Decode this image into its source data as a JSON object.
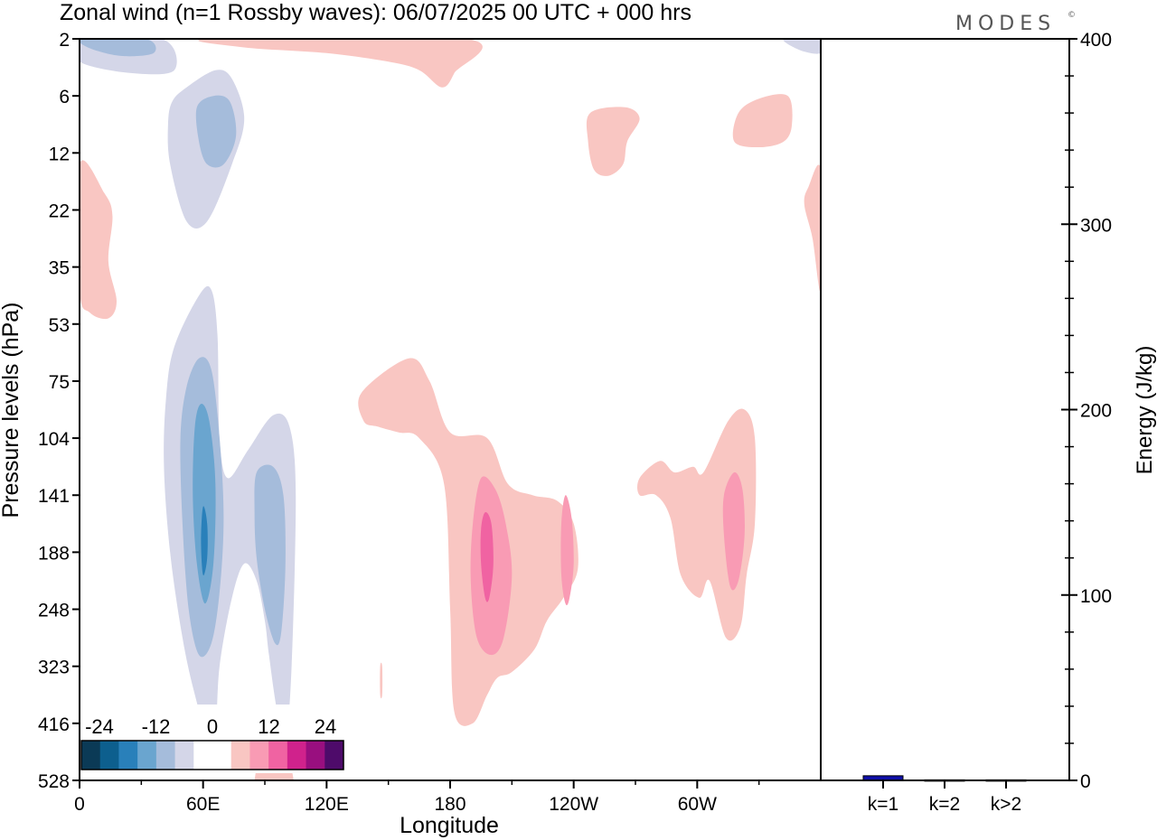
{
  "title": "Zonal wind (n=1 Rossby waves):  06/07/2025  00 UTC  + 000 hrs",
  "logo": {
    "text": "MODES",
    "mark": "©"
  },
  "chart_data": [
    {
      "type": "heatmap",
      "title": "Zonal wind (n=1 Rossby waves):  06/07/2025  00 UTC  + 000 hrs",
      "xlabel": "Longitude",
      "ylabel": "Pressure levels (hPa)",
      "x_ticks": [
        {
          "lon": 0,
          "label": "0"
        },
        {
          "lon": 60,
          "label": "60E"
        },
        {
          "lon": 120,
          "label": "120E"
        },
        {
          "lon": 180,
          "label": "180"
        },
        {
          "lon": 240,
          "label": "120W"
        },
        {
          "lon": 300,
          "label": "60W"
        }
      ],
      "x_minor_lons": [
        30,
        90,
        150,
        210,
        270,
        330
      ],
      "xlim": [
        0,
        360
      ],
      "y_levels_hPa": [
        "2",
        "6",
        "12",
        "22",
        "35",
        "53",
        "75",
        "104",
        "141",
        "188",
        "248",
        "323",
        "416",
        "528"
      ],
      "colorbar": {
        "labels": [
          "-24",
          "-12",
          "0",
          "12",
          "24"
        ],
        "colors": [
          "#0b3a56",
          "#0d5f8e",
          "#2980ba",
          "#6aa5cf",
          "#a5bcdb",
          "#d4d6e8",
          "#ffffff",
          "#ffffff",
          "#f9c6c2",
          "#f99bb4",
          "#f063a2",
          "#d0228c",
          "#990f7f",
          "#4e0b6a"
        ]
      },
      "contours": [
        {
          "name": "neg-top-left",
          "value": -6,
          "color": "#d4d6e8",
          "points": [
            [
              0,
              0
            ],
            [
              40,
              0
            ],
            [
              46,
              0.55
            ],
            [
              25,
              0.6
            ],
            [
              0,
              0.4
            ]
          ]
        },
        {
          "name": "neg-top-left-2",
          "value": -12,
          "color": "#a5bcdb",
          "points": [
            [
              2,
              0
            ],
            [
              32,
              0
            ],
            [
              36,
              0.25
            ],
            [
              20,
              0.3
            ],
            [
              4,
              0.15
            ]
          ]
        },
        {
          "name": "neg-strat-a",
          "value": -6,
          "color": "#d4d6e8",
          "points": [
            [
              52,
              0.85
            ],
            [
              66,
              0.55
            ],
            [
              74,
              0.7
            ],
            [
              80,
              1.4
            ],
            [
              74,
              2.2
            ],
            [
              62,
              3.2
            ],
            [
              52,
              3.2
            ],
            [
              44,
              2.2
            ],
            [
              43,
              1.5
            ],
            [
              45,
              1.1
            ]
          ]
        },
        {
          "name": "neg-strat-b",
          "value": -12,
          "color": "#a5bcdb",
          "points": [
            [
              57,
              1.2
            ],
            [
              65,
              1.0
            ],
            [
              73,
              1.1
            ],
            [
              76,
              1.7
            ],
            [
              70,
              2.2
            ],
            [
              62,
              2.2
            ],
            [
              58,
              1.8
            ]
          ]
        },
        {
          "name": "neg-trop-outer",
          "value": -6,
          "color": "#d4d6e8",
          "points": [
            [
              58,
              4.5
            ],
            [
              64,
              4.4
            ],
            [
              67,
              5.2
            ],
            [
              68,
              7.0
            ],
            [
              72,
              7.7
            ],
            [
              82,
              7.2
            ],
            [
              94,
              6.6
            ],
            [
              102,
              6.8
            ],
            [
              105,
              8.0
            ],
            [
              103,
              11.0
            ],
            [
              100,
              12.3
            ],
            [
              96,
              11.8
            ],
            [
              92,
              10.8
            ],
            [
              90,
              10.2
            ],
            [
              86,
              9.5
            ],
            [
              80,
              9.2
            ],
            [
              74,
              9.8
            ],
            [
              68,
              11.0
            ],
            [
              66,
              12.1
            ],
            [
              62,
              12.2
            ],
            [
              56,
              11.5
            ],
            [
              50,
              10.5
            ],
            [
              44,
              9.0
            ],
            [
              41,
              7.5
            ],
            [
              42,
              6.3
            ],
            [
              46,
              5.4
            ]
          ]
        },
        {
          "name": "neg-trop-mid-a",
          "value": -12,
          "color": "#a5bcdb",
          "points": [
            [
              58,
              5.6
            ],
            [
              64,
              5.8
            ],
            [
              68,
              7.0
            ],
            [
              70,
              8.4
            ],
            [
              68,
              9.7
            ],
            [
              64,
              10.6
            ],
            [
              58,
              10.8
            ],
            [
              53,
              10.0
            ],
            [
              50,
              8.5
            ],
            [
              49,
              7.0
            ],
            [
              52,
              6.1
            ]
          ]
        },
        {
          "name": "neg-trop-mid-b",
          "value": -12,
          "color": "#a5bcdb",
          "points": [
            [
              86,
              7.6
            ],
            [
              94,
              7.5
            ],
            [
              99,
              8.0
            ],
            [
              100,
              9.2
            ],
            [
              98,
              10.4
            ],
            [
              95,
              10.6
            ],
            [
              90,
              10.0
            ],
            [
              86,
              9.1
            ],
            [
              85,
              8.3
            ]
          ]
        },
        {
          "name": "neg-trop-core",
          "value": -18,
          "color": "#6aa5cf",
          "points": [
            [
              59,
              6.4
            ],
            [
              63,
              6.7
            ],
            [
              66,
              7.8
            ],
            [
              65,
              9.2
            ],
            [
              61,
              9.9
            ],
            [
              57,
              9.2
            ],
            [
              55,
              8.0
            ],
            [
              56,
              6.8
            ]
          ]
        },
        {
          "name": "neg-trop-max",
          "value": -24,
          "color": "#2980ba",
          "points": [
            [
              60,
              8.2
            ],
            [
              62,
              8.5
            ],
            [
              62,
              9.1
            ],
            [
              60,
              9.4
            ],
            [
              59,
              8.8
            ]
          ]
        },
        {
          "name": "neg-surf-a",
          "value": -6,
          "color": "#d4d6e8",
          "points": [
            [
              295,
              13.3
            ],
            [
              298,
              13.0
            ],
            [
              300,
              13.5
            ],
            [
              300,
              14
            ],
            [
              294,
              14
            ]
          ]
        },
        {
          "name": "neg-top-right",
          "value": -6,
          "color": "#d4d6e8",
          "points": [
            [
              342,
              0
            ],
            [
              360,
              0
            ],
            [
              360,
              0.25
            ],
            [
              350,
              0.2
            ]
          ]
        },
        {
          "name": "pos-top-mid",
          "value": 6,
          "color": "#f9c6c2",
          "points": [
            [
              64,
              0
            ],
            [
              188,
              0
            ],
            [
              182,
              0.6
            ],
            [
              176,
              0.85
            ],
            [
              165,
              0.55
            ],
            [
              150,
              0.4
            ],
            [
              120,
              0.25
            ],
            [
              80,
              0.15
            ]
          ]
        },
        {
          "name": "pos-top-r1",
          "value": 6,
          "color": "#f9c6c2",
          "points": [
            [
              248,
              1.3
            ],
            [
              265,
              1.2
            ],
            [
              272,
              1.4
            ],
            [
              266,
              1.8
            ],
            [
              264,
              2.2
            ],
            [
              257,
              2.4
            ],
            [
              250,
              2.3
            ],
            [
              247,
              1.8
            ]
          ]
        },
        {
          "name": "pos-top-r2",
          "value": 6,
          "color": "#f9c6c2",
          "points": [
            [
              320,
              1.3
            ],
            [
              330,
              1.05
            ],
            [
              344,
              1.0
            ],
            [
              346,
              1.5
            ],
            [
              342,
              1.8
            ],
            [
              330,
              1.9
            ],
            [
              318,
              1.8
            ]
          ]
        },
        {
          "name": "pos-left-edge",
          "value": 6,
          "color": "#f9c6c2",
          "points": [
            [
              0,
              2.2
            ],
            [
              12,
              2.7
            ],
            [
              16,
              3.1
            ],
            [
              14,
              3.9
            ],
            [
              18,
              4.6
            ],
            [
              14,
              4.9
            ],
            [
              5,
              4.8
            ],
            [
              0,
              4.4
            ]
          ]
        },
        {
          "name": "pos-right-edge",
          "value": 6,
          "color": "#f9c6c2",
          "points": [
            [
              360,
              2.3
            ],
            [
              360,
              4.4
            ],
            [
              356,
              3.5
            ],
            [
              352,
              2.9
            ],
            [
              354,
              2.6
            ]
          ]
        },
        {
          "name": "pos-mid-outer",
          "value": 6,
          "color": "#f9c6c2",
          "points": [
            [
              137,
              6.2
            ],
            [
              160,
              5.6
            ],
            [
              170,
              6.0
            ],
            [
              180,
              6.9
            ],
            [
              198,
              7.0
            ],
            [
              208,
              7.8
            ],
            [
              220,
              8.0
            ],
            [
              232,
              8.1
            ],
            [
              240,
              8.5
            ],
            [
              242,
              9.3
            ],
            [
              235,
              9.8
            ],
            [
              227,
              10.2
            ],
            [
              221,
              10.7
            ],
            [
              210,
              11.1
            ],
            [
              203,
              11.2
            ],
            [
              198,
              11.5
            ],
            [
              191,
              12.0
            ],
            [
              182,
              11.8
            ],
            [
              180,
              10.0
            ],
            [
              177,
              7.8
            ],
            [
              165,
              7.0
            ],
            [
              155,
              6.9
            ],
            [
              145,
              6.8
            ],
            [
              138,
              6.7
            ]
          ]
        },
        {
          "name": "pos-mid-r",
          "value": 6,
          "color": "#f9c6c2",
          "points": [
            [
              272,
              7.7
            ],
            [
              282,
              7.4
            ],
            [
              289,
              7.6
            ],
            [
              298,
              7.5
            ],
            [
              303,
              7.6
            ],
            [
              315,
              6.7
            ],
            [
              323,
              6.5
            ],
            [
              328,
              7.0
            ],
            [
              328,
              8.5
            ],
            [
              324,
              9.4
            ],
            [
              321,
              10.3
            ],
            [
              314,
              10.5
            ],
            [
              306,
              9.5
            ],
            [
              301,
              9.8
            ],
            [
              292,
              9.4
            ],
            [
              287,
              8.4
            ],
            [
              280,
              8.0
            ],
            [
              272,
              8.0
            ]
          ]
        },
        {
          "name": "pos-mid-mid-a",
          "value": 12,
          "color": "#f99bb4",
          "points": [
            [
              195,
              7.7
            ],
            [
              202,
              7.9
            ],
            [
              207,
              8.5
            ],
            [
              210,
              9.4
            ],
            [
              206,
              10.5
            ],
            [
              200,
              10.8
            ],
            [
              193,
              10.5
            ],
            [
              190,
              9.5
            ],
            [
              191,
              8.5
            ]
          ]
        },
        {
          "name": "pos-mid-mid-b",
          "value": 12,
          "color": "#f99bb4",
          "points": [
            [
              236,
              8.0
            ],
            [
              239,
              8.4
            ],
            [
              240,
              9.2
            ],
            [
              238,
              9.8
            ],
            [
              236,
              9.9
            ],
            [
              234,
              9.4
            ],
            [
              234,
              8.5
            ]
          ]
        },
        {
          "name": "pos-mid-mid-c",
          "value": 12,
          "color": "#f99bb4",
          "points": [
            [
              318,
              7.6
            ],
            [
              322,
              7.9
            ],
            [
              323,
              8.7
            ],
            [
              320,
              9.5
            ],
            [
              316,
              9.6
            ],
            [
              313,
              8.7
            ],
            [
              313,
              8.0
            ]
          ]
        },
        {
          "name": "pos-mid-core",
          "value": 18,
          "color": "#f063a2",
          "points": [
            [
              197,
              8.3
            ],
            [
              200,
              8.5
            ],
            [
              201,
              9.2
            ],
            [
              199,
              9.8
            ],
            [
              197,
              9.8
            ],
            [
              195,
              9.2
            ],
            [
              195,
              8.6
            ]
          ]
        },
        {
          "name": "pos-surf-a",
          "value": 6,
          "color": "#f9c6c2",
          "points": [
            [
              92,
              11.7
            ],
            [
              95,
              11.8
            ],
            [
              100,
              12.3
            ],
            [
              104,
              13.0
            ],
            [
              108,
              14
            ],
            [
              80,
              14
            ],
            [
              85,
              13.0
            ],
            [
              88,
              12.2
            ]
          ]
        },
        {
          "name": "pos-speck",
          "value": 6,
          "color": "#f9c6c2",
          "points": [
            [
              146,
              11.0
            ],
            [
              147,
              11.0
            ],
            [
              147,
              11.5
            ],
            [
              146,
              11.5
            ]
          ]
        }
      ]
    },
    {
      "type": "bar",
      "categories": [
        "k=1",
        "k=2",
        "k>2"
      ],
      "values": [
        2.5,
        0.3,
        0.3
      ],
      "ylabel": "Energy (J/kg)",
      "ylim": [
        0,
        400
      ],
      "y_ticks": [
        "0",
        "100",
        "200",
        "300",
        "400"
      ],
      "colors": [
        "#1010a8",
        "#1010a8",
        "#1010a8"
      ]
    }
  ]
}
